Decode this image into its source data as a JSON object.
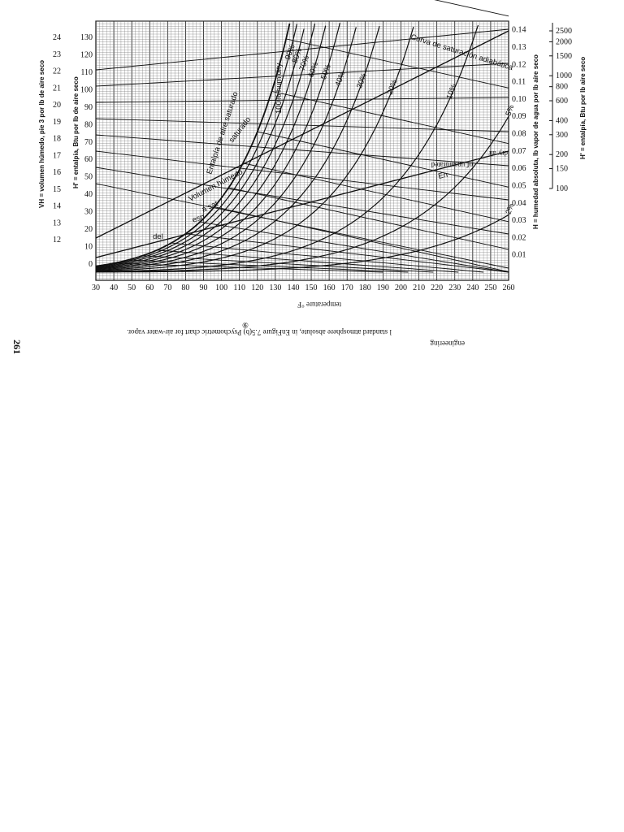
{
  "page": {
    "page_number": "261",
    "caption_line": "l standard atmosphere absolute, in EnFigure 7.5(b) Psychometric chart for air-water vapor.",
    "caption_word": "engineering",
    "x_axis_name": "temperature °F",
    "circled_mark": "⑨"
  },
  "chart_data": {
    "type": "line",
    "title": "",
    "xlabel": "°F",
    "x_ticks": [
      30,
      40,
      50,
      60,
      70,
      80,
      90,
      100,
      110,
      120,
      130,
      140,
      150,
      160,
      170,
      180,
      190,
      200,
      210,
      220,
      230,
      240,
      250,
      260
    ],
    "xlim": [
      30,
      260
    ],
    "left_axis_1": {
      "label": "VH = volumen húmedo, pie 3 por lb de aire seco",
      "ticks": [
        "24",
        "23",
        "22",
        "21",
        "20",
        "19",
        "18",
        "17",
        "16",
        "15",
        "14",
        "13",
        "12"
      ]
    },
    "left_axis_2": {
      "label": "H' = entalpía, Btu por lb de aire seco",
      "ticks": [
        130,
        120,
        110,
        100,
        90,
        80,
        70,
        60,
        50,
        40,
        30,
        20,
        10,
        0
      ],
      "ylim": [
        0,
        130
      ]
    },
    "right_axis_1": {
      "label": "H = humedad absoluta, lb vapor de agua por lb aire seco",
      "ticks": [
        0.14,
        0.13,
        0.12,
        0.11,
        0.1,
        0.09,
        0.08,
        0.07,
        0.06,
        0.05,
        0.04,
        0.03,
        0.02,
        0.01
      ],
      "ylim": [
        0,
        0.145
      ]
    },
    "right_axis_2": {
      "label": "H' = entalpía, Btu por lb aire seco",
      "ticks": [
        2500,
        2000,
        1500,
        1000,
        800,
        600,
        400,
        300,
        200,
        150,
        100
      ]
    },
    "relative_humidity_curves": [
      {
        "name": "100% humidity",
        "rh": 1.0
      },
      {
        "name": "90%",
        "rh": 0.9
      },
      {
        "name": "80%",
        "rh": 0.8
      },
      {
        "name": "70%",
        "rh": 0.7
      },
      {
        "name": "60%",
        "rh": 0.6
      },
      {
        "name": "50%",
        "rh": 0.5
      },
      {
        "name": "40%",
        "rh": 0.4
      },
      {
        "name": "30%",
        "rh": 0.3
      },
      {
        "name": "20%",
        "rh": 0.2
      },
      {
        "name": "10%",
        "rh": 0.1
      },
      {
        "name": "5%",
        "rh": 0.05
      },
      {
        "name": "2%",
        "rh": 0.02
      }
    ],
    "annotations": [
      "Curva de saturación adiabática",
      "saturado",
      "Entalpía de aire saturado",
      "Volumen húmedo",
      "a sat",
      "esp",
      "del",
      "En",
      "dry air",
      "of unsaturated",
      "100% humidity"
    ],
    "grid": true
  },
  "colors": {
    "ink": "#111111",
    "paper": "#ffffff",
    "grid": "#777777"
  }
}
